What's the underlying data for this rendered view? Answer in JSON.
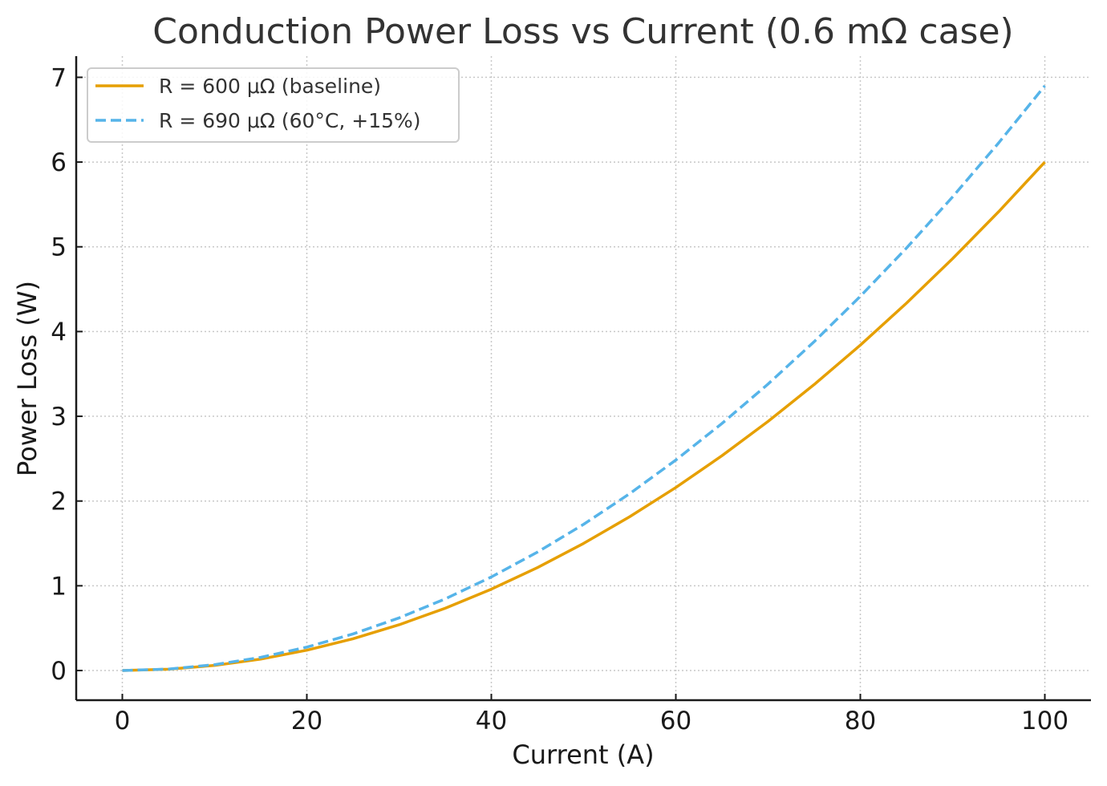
{
  "chart_data": {
    "type": "line",
    "title": "Conduction Power Loss vs Current (0.6 mΩ case)",
    "xlabel": "Current (A)",
    "ylabel": "Power Loss (W)",
    "xlim": [
      -5,
      105
    ],
    "ylim": [
      -0.35,
      7.25
    ],
    "xticks": [
      0,
      20,
      40,
      60,
      80,
      100
    ],
    "yticks": [
      0,
      1,
      2,
      3,
      4,
      5,
      6,
      7
    ],
    "grid": true,
    "legend_position": "top-left",
    "x": [
      0,
      5,
      10,
      15,
      20,
      25,
      30,
      35,
      40,
      45,
      50,
      55,
      60,
      65,
      70,
      75,
      80,
      85,
      90,
      95,
      100
    ],
    "series": [
      {
        "name": "R = 600 μΩ (baseline)",
        "color": "#E69F00",
        "style": "solid",
        "values": [
          0,
          0.015,
          0.06,
          0.135,
          0.24,
          0.375,
          0.54,
          0.735,
          0.96,
          1.215,
          1.5,
          1.815,
          2.16,
          2.535,
          2.94,
          3.375,
          3.84,
          4.335,
          4.86,
          5.415,
          6.0
        ]
      },
      {
        "name": "R = 690 μΩ (60°C, +15%)",
        "color": "#56B4E9",
        "style": "dashed",
        "values": [
          0,
          0.01725,
          0.069,
          0.15525,
          0.276,
          0.43125,
          0.621,
          0.84525,
          1.104,
          1.39725,
          1.725,
          2.08725,
          2.484,
          2.91525,
          3.381,
          3.88125,
          4.416,
          4.98525,
          5.589,
          6.22725,
          6.9
        ]
      }
    ]
  }
}
